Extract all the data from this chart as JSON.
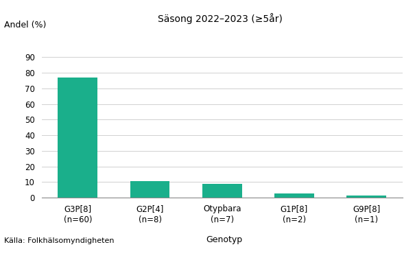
{
  "categories": [
    "G3P[8]\n(n=60)",
    "G2P[4]\n(n=8)",
    "Otypbara\n(n=7)",
    "G1P[8]\n(n=2)",
    "G9P[8]\n(n=1)"
  ],
  "values": [
    77,
    10.5,
    9,
    2.7,
    1.3
  ],
  "bar_color": "#1aaf8b",
  "title": "Säsong 2022–2023 (≥5år)",
  "ylabel": "Andel (%)",
  "xlabel": "Genotyp",
  "ylim": [
    0,
    90
  ],
  "yticks": [
    0,
    10,
    20,
    30,
    40,
    50,
    60,
    70,
    80,
    90
  ],
  "source": "Källa: Folkhälsomyndigheten",
  "background_color": "#ffffff",
  "grid_color": "#d0d0d0"
}
